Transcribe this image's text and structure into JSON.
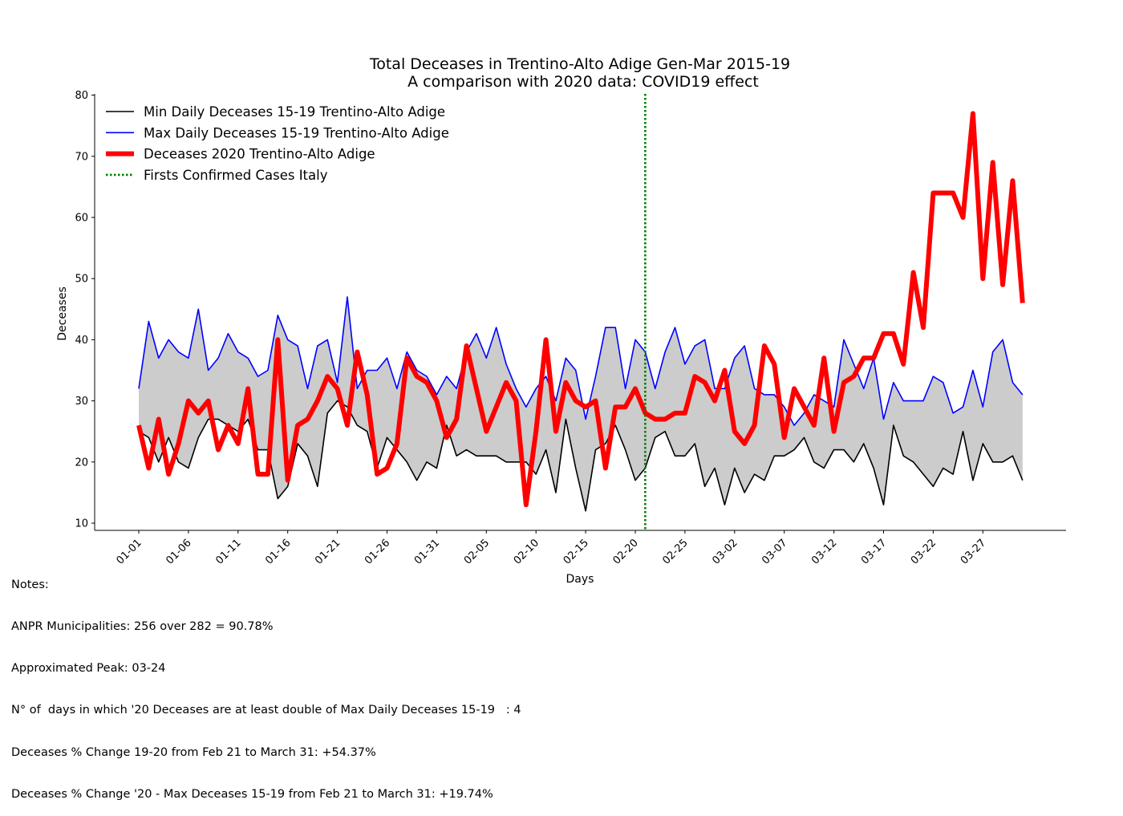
{
  "chart_data": {
    "type": "line",
    "title": "Total Deceases in Trentino-Alto Adige Gen-Mar 2015-19",
    "subtitle": "A comparison with 2020 data: COVID19 effect",
    "xlabel": "Days",
    "ylabel": "Deceases",
    "ylim": [
      9,
      80
    ],
    "yticks": [
      10,
      20,
      30,
      40,
      50,
      60,
      70,
      80
    ],
    "grid": false,
    "legend_position": "top-left",
    "x": [
      "01-01",
      "01-02",
      "01-03",
      "01-04",
      "01-05",
      "01-06",
      "01-07",
      "01-08",
      "01-09",
      "01-10",
      "01-11",
      "01-12",
      "01-13",
      "01-14",
      "01-15",
      "01-16",
      "01-17",
      "01-18",
      "01-19",
      "01-20",
      "01-21",
      "01-22",
      "01-23",
      "01-24",
      "01-25",
      "01-26",
      "01-27",
      "01-28",
      "01-29",
      "01-30",
      "01-31",
      "02-01",
      "02-02",
      "02-03",
      "02-04",
      "02-05",
      "02-06",
      "02-07",
      "02-08",
      "02-09",
      "02-10",
      "02-11",
      "02-12",
      "02-13",
      "02-14",
      "02-15",
      "02-16",
      "02-17",
      "02-18",
      "02-19",
      "02-20",
      "02-21",
      "02-22",
      "02-23",
      "02-24",
      "02-25",
      "02-26",
      "02-27",
      "02-28",
      "03-01",
      "03-02",
      "03-03",
      "03-04",
      "03-05",
      "03-06",
      "03-07",
      "03-08",
      "03-09",
      "03-10",
      "03-11",
      "03-12",
      "03-13",
      "03-14",
      "03-15",
      "03-16",
      "03-17",
      "03-18",
      "03-19",
      "03-20",
      "03-21",
      "03-22",
      "03-23",
      "03-24",
      "03-25",
      "03-26",
      "03-27",
      "03-28",
      "03-29",
      "03-30",
      "03-31"
    ],
    "xticks": [
      "01-01",
      "01-06",
      "01-11",
      "01-16",
      "01-21",
      "01-26",
      "01-31",
      "02-05",
      "02-10",
      "02-15",
      "02-20",
      "02-25",
      "03-02",
      "03-07",
      "03-12",
      "03-17",
      "03-22",
      "03-27"
    ],
    "series": [
      {
        "name": "Min Daily Deceases 15-19 Trentino-Alto Adige",
        "color": "#000000",
        "values": [
          25,
          24,
          20,
          24,
          20,
          19,
          24,
          27,
          27,
          26,
          25,
          27,
          22,
          22,
          14,
          16,
          23,
          21,
          16,
          28,
          30,
          29,
          26,
          25,
          19,
          24,
          22,
          20,
          17,
          20,
          19,
          26,
          21,
          22,
          21,
          21,
          21,
          20,
          20,
          20,
          18,
          22,
          15,
          27,
          19,
          12,
          22,
          23,
          26,
          22,
          17,
          19,
          24,
          25,
          21,
          21,
          23,
          16,
          19,
          13,
          19,
          15,
          18,
          17,
          21,
          21,
          22,
          24,
          20,
          19,
          22,
          22,
          20,
          23,
          19,
          13,
          26,
          21,
          20,
          18,
          16,
          19,
          18,
          25,
          17,
          23,
          20,
          20,
          21,
          17
        ]
      },
      {
        "name": "Max Daily Deceases 15-19 Trentino-Alto Adige",
        "color": "#0000ff",
        "values": [
          32,
          43,
          37,
          40,
          38,
          37,
          45,
          35,
          37,
          41,
          38,
          37,
          34,
          35,
          44,
          40,
          39,
          32,
          39,
          40,
          33,
          47,
          32,
          35,
          35,
          37,
          32,
          38,
          35,
          34,
          31,
          34,
          32,
          38,
          41,
          37,
          42,
          36,
          32,
          29,
          32,
          34,
          30,
          37,
          35,
          27,
          34,
          42,
          42,
          32,
          40,
          38,
          32,
          38,
          42,
          36,
          39,
          40,
          32,
          32,
          37,
          39,
          32,
          31,
          31,
          29,
          26,
          28,
          31,
          30,
          29,
          40,
          36,
          32,
          37,
          27,
          33,
          30,
          30,
          30,
          34,
          33,
          28,
          29,
          35,
          29,
          38,
          40,
          33,
          31
        ]
      },
      {
        "name": "Deceases 2020 Trentino-Alto Adige",
        "color": "#ff0000",
        "values": [
          26,
          19,
          27,
          18,
          23,
          30,
          28,
          30,
          22,
          26,
          23,
          32,
          18,
          18,
          40,
          17,
          26,
          27,
          30,
          34,
          32,
          26,
          38,
          31,
          18,
          19,
          23,
          37,
          34,
          33,
          30,
          24,
          27,
          39,
          32,
          25,
          29,
          33,
          30,
          13,
          25,
          40,
          25,
          33,
          30,
          29,
          30,
          19,
          29,
          29,
          32,
          28,
          27,
          27,
          28,
          28,
          34,
          33,
          30,
          35,
          25,
          23,
          26,
          39,
          36,
          24,
          32,
          29,
          26,
          37,
          25,
          33,
          34,
          37,
          37,
          41,
          41,
          36,
          51,
          42,
          64,
          64,
          64,
          60,
          77,
          50,
          69,
          49,
          66,
          46
        ]
      },
      {
        "name": "Firsts Confirmed Cases Italy",
        "color": "#008000",
        "x_marker": "02-21"
      }
    ]
  },
  "notes": {
    "heading": "Notes:",
    "line1": "ANPR Municipalities: 256 over 282 = 90.78%",
    "line2": "Approximated Peak: 03-24",
    "line3": "N° of  days in which '20 Deceases are at least double of Max Daily Deceases 15-19   : 4",
    "line4": "Deceases % Change 19-20 from Feb 21 to March 31: +54.37%",
    "line5": "Deceases % Change '20 - Max Deceases 15-19 from Feb 21 to March 31: +19.74%"
  }
}
